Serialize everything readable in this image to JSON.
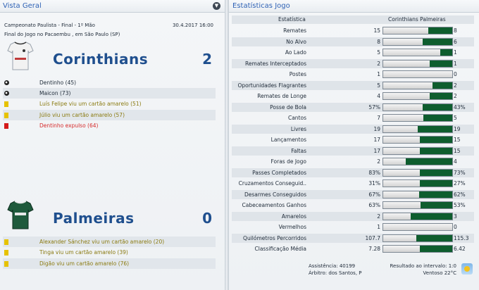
{
  "left": {
    "title": "Vista Geral",
    "competition": "Campeonato Paulista - Final - 1º Mão",
    "date": "30.4.2017 16:00",
    "venue": "Final do Jogo no Pacaembu , em São Paulo (SP)",
    "home": {
      "name": "Corinthians",
      "score": "2",
      "events": [
        {
          "type": "goal",
          "text": "Dentinho (45)"
        },
        {
          "type": "goal",
          "text": "Maicon (73)"
        },
        {
          "type": "yellow",
          "text": "Luís Felipe viu um cartão amarelo (51)"
        },
        {
          "type": "yellow",
          "text": "Júlio viu um cartão amarelo (57)"
        },
        {
          "type": "red",
          "text": "Dentinho expulso (64)"
        }
      ]
    },
    "away": {
      "name": "Palmeiras",
      "score": "0",
      "events": [
        {
          "type": "yellow",
          "text": "Alexander Sánchez viu um cartão amarelo (20)"
        },
        {
          "type": "yellow",
          "text": "Tinga viu um cartão amarelo (39)"
        },
        {
          "type": "yellow",
          "text": "Digão viu um cartão amarelo (76)"
        }
      ]
    }
  },
  "right": {
    "title": "Estatísticas Jogo",
    "header_stat": "Estatística",
    "header_teams": "Corinthians  Palmeiras",
    "stats": [
      {
        "label": "Remates",
        "home": "15",
        "away": "8",
        "share": 0.35
      },
      {
        "label": "No Alvo",
        "home": "8",
        "away": "6",
        "share": 0.43
      },
      {
        "label": "Ao Lado",
        "home": "5",
        "away": "1",
        "share": 0.17
      },
      {
        "label": "Remates Interceptados",
        "home": "2",
        "away": "1",
        "share": 0.33
      },
      {
        "label": "Postes",
        "home": "1",
        "away": "0",
        "share": 0.0
      },
      {
        "label": "Oportunidades Flagrantes",
        "home": "5",
        "away": "2",
        "share": 0.29
      },
      {
        "label": "Remates de Longe",
        "home": "4",
        "away": "2",
        "share": 0.33
      },
      {
        "label": "Posse de Bola",
        "home": "57%",
        "away": "43%",
        "share": 0.43
      },
      {
        "label": "Cantos",
        "home": "7",
        "away": "5",
        "share": 0.42
      },
      {
        "label": "Livres",
        "home": "19",
        "away": "19",
        "share": 0.5
      },
      {
        "label": "Lançamentos",
        "home": "17",
        "away": "15",
        "share": 0.47
      },
      {
        "label": "Faltas",
        "home": "17",
        "away": "15",
        "share": 0.47
      },
      {
        "label": "Foras de Jogo",
        "home": "2",
        "away": "4",
        "share": 0.67
      },
      {
        "label": "Passes Completados",
        "home": "83%",
        "away": "73%",
        "share": 0.47
      },
      {
        "label": "Cruzamentos Conseguid..",
        "home": "31%",
        "away": "27%",
        "share": 0.47
      },
      {
        "label": "Desarmes Conseguidos",
        "home": "67%",
        "away": "62%",
        "share": 0.48
      },
      {
        "label": "Cabeceamentos Ganhos",
        "home": "63%",
        "away": "53%",
        "share": 0.46
      },
      {
        "label": "Amarelos",
        "home": "2",
        "away": "3",
        "share": 0.6
      },
      {
        "label": "Vermelhos",
        "home": "1",
        "away": "0",
        "share": 0.0
      },
      {
        "label": "Quilómetros Percorridos",
        "home": "107.7",
        "away": "115.3",
        "share": 0.52
      },
      {
        "label": "Classificação Média",
        "home": "7.28",
        "away": "6.42",
        "share": 0.47
      }
    ],
    "attendance": "Assistência: 40199",
    "referee": "Árbitro: dos Santos, P",
    "halftime": "Resultado ao intervalo: 1:0",
    "weather": "Ventoso 22°C"
  },
  "colors": {
    "accent": "#2f62b5",
    "team_name": "#1f4f8e",
    "away_fill": "#0e5d2e",
    "yellow_card": "#e6c200",
    "red_card": "#d41a1a"
  }
}
